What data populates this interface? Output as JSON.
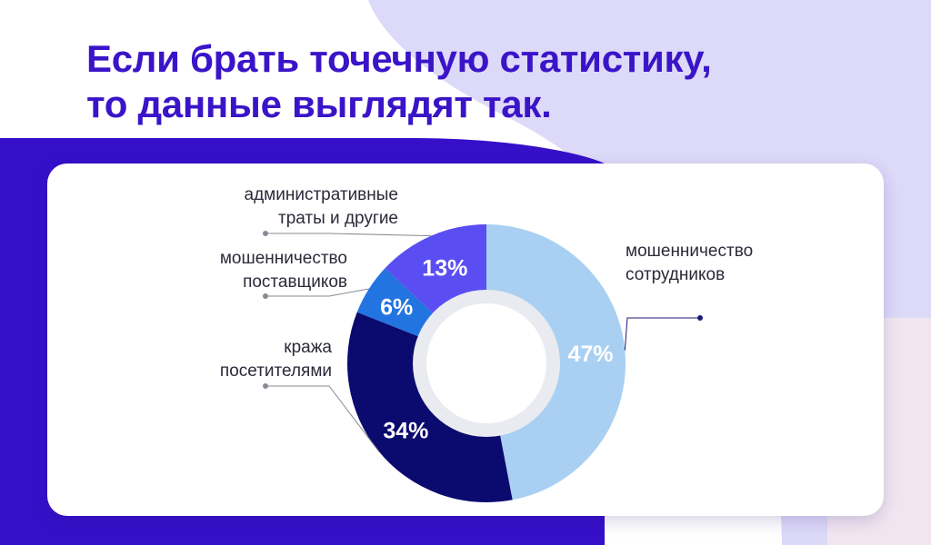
{
  "headline": {
    "line1": "Если брать точечную статистику,",
    "line2": "то данные выглядят так."
  },
  "colors": {
    "headline": "#3a14c8",
    "band": "#3610c9",
    "lavender": "#ddd9f8",
    "slice_employees": "#a9d0f2",
    "slice_visitors": "#0b0a6e",
    "slice_suppliers": "#2274e0",
    "slice_admin": "#5a4ef2",
    "ring": "#e9ebf0"
  },
  "chart_data": {
    "type": "pie",
    "style": "donut",
    "title": "",
    "unit": "%",
    "categories": [
      "мошенничество сотрудников",
      "кража посетителями",
      "мошенничество поставщиков",
      "административные траты и другие"
    ],
    "values": [
      47,
      34,
      6,
      13
    ],
    "value_labels": [
      "47%",
      "34%",
      "6%",
      "13%"
    ],
    "category_lines": [
      [
        "мошенничество",
        "сотрудников"
      ],
      [
        "кража",
        "посетителями"
      ],
      [
        "мошенничество",
        "поставщиков"
      ],
      [
        "административные",
        "траты и другие"
      ]
    ],
    "legend": "callout labels next to slices"
  }
}
